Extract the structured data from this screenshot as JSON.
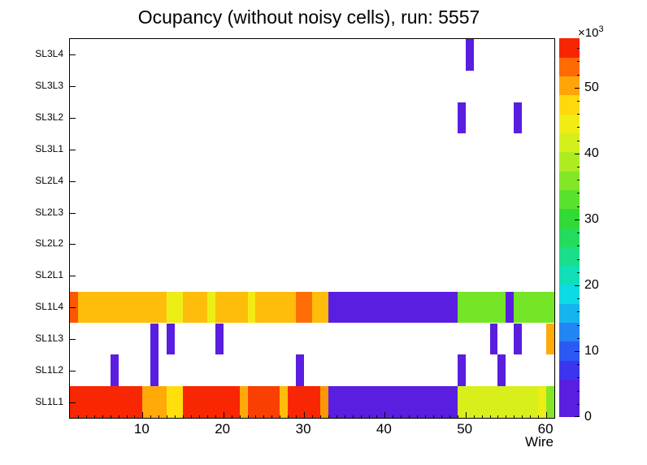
{
  "chart_data": {
    "type": "heatmap",
    "title": "Ocupancy (without noisy cells), run: 5557",
    "xlabel": "Wire",
    "x_min": 1,
    "x_max": 61,
    "x_major_ticks": [
      10,
      20,
      30,
      40,
      50,
      60
    ],
    "y_categories": [
      "SL1L1",
      "SL1L2",
      "SL1L3",
      "SL1L4",
      "SL2L1",
      "SL2L2",
      "SL2L3",
      "SL2L4",
      "SL3L1",
      "SL3L2",
      "SL3L3",
      "SL3L4"
    ],
    "z_min": 0,
    "z_max": 57.5,
    "z_ticks": [
      0,
      10,
      20,
      30,
      40,
      50
    ],
    "z_exponent_prefix": "×10",
    "z_exponent": "3",
    "z_unit": "counts, in thousands",
    "legend_position": "right-colorbar",
    "grid": false,
    "rows": {
      "SL1L1": [
        [
          1,
          9,
          56
        ],
        [
          10,
          12,
          50
        ],
        [
          13,
          14,
          47
        ],
        [
          15,
          21,
          56
        ],
        [
          22,
          22,
          50
        ],
        [
          23,
          26,
          55
        ],
        [
          27,
          27,
          49
        ],
        [
          28,
          31,
          56
        ],
        [
          32,
          32,
          51
        ],
        [
          33,
          48,
          2
        ],
        [
          49,
          58,
          42
        ],
        [
          59,
          59,
          44
        ],
        [
          60,
          60,
          36
        ]
      ],
      "SL1L2": [
        [
          6,
          6,
          3
        ],
        [
          11,
          11,
          3
        ],
        [
          29,
          29,
          3
        ],
        [
          49,
          49,
          3
        ],
        [
          54,
          54,
          3
        ]
      ],
      "SL1L3": [
        [
          11,
          11,
          3
        ],
        [
          13,
          13,
          3
        ],
        [
          19,
          19,
          3
        ],
        [
          53,
          53,
          3
        ],
        [
          56,
          56,
          3
        ],
        [
          60,
          60,
          50
        ]
      ],
      "SL1L4": [
        [
          1,
          1,
          54
        ],
        [
          2,
          12,
          49
        ],
        [
          13,
          14,
          44
        ],
        [
          15,
          17,
          49
        ],
        [
          18,
          18,
          44
        ],
        [
          19,
          22,
          49
        ],
        [
          23,
          23,
          45
        ],
        [
          24,
          28,
          49
        ],
        [
          29,
          30,
          53
        ],
        [
          31,
          32,
          49
        ],
        [
          33,
          48,
          2
        ],
        [
          49,
          54,
          35
        ],
        [
          55,
          55,
          3
        ],
        [
          56,
          60,
          35
        ]
      ],
      "SL2L1": [],
      "SL2L2": [],
      "SL2L3": [],
      "SL2L4": [],
      "SL3L1": [],
      "SL3L2": [
        [
          49,
          49,
          3
        ],
        [
          56,
          56,
          3
        ]
      ],
      "SL3L3": [],
      "SL3L4": [
        [
          50,
          50,
          3
        ]
      ]
    }
  },
  "palette": {
    "stops": [
      [
        0.0,
        "#5a1ee0"
      ],
      [
        0.08,
        "#5a1ee0"
      ],
      [
        0.14,
        "#2f3ef2"
      ],
      [
        0.2,
        "#2a6cf5"
      ],
      [
        0.26,
        "#19a7f0"
      ],
      [
        0.32,
        "#0cd9e8"
      ],
      [
        0.38,
        "#10e0b4"
      ],
      [
        0.44,
        "#1ddd7a"
      ],
      [
        0.52,
        "#2ed937"
      ],
      [
        0.6,
        "#6ee428"
      ],
      [
        0.68,
        "#b2ec20"
      ],
      [
        0.75,
        "#e7f019"
      ],
      [
        0.81,
        "#ffe70e"
      ],
      [
        0.86,
        "#ffb50a"
      ],
      [
        0.91,
        "#ff7e05"
      ],
      [
        0.95,
        "#fb4903"
      ],
      [
        1.0,
        "#f40000"
      ]
    ],
    "bands": 20
  }
}
